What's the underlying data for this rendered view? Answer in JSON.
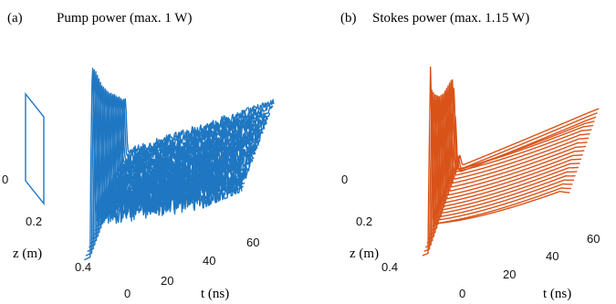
{
  "chart_data": [
    {
      "type": "line",
      "style": "waterfall-3d",
      "panel_label": "(a)",
      "title": "Pump power (max. 1 W)",
      "max_value": 1,
      "color": "#1f77c2",
      "xlabel": "t (ns)",
      "ylabel": "z (m)",
      "xticks": [
        "20",
        "40",
        "60"
      ],
      "yticks": [
        "0",
        "0.2",
        "0.4"
      ],
      "xticks_z0": [
        "0"
      ],
      "xlim": [
        0,
        75
      ],
      "ylim": [
        0,
        0.5
      ],
      "series": [
        {
          "z": 0.0,
          "peak": 0.38
        },
        {
          "z": 0.02,
          "peak": 0.4
        },
        {
          "z": 0.04,
          "peak": 0.42
        },
        {
          "z": 0.06,
          "peak": 0.45
        },
        {
          "z": 0.08,
          "peak": 0.48
        },
        {
          "z": 0.1,
          "peak": 0.5
        },
        {
          "z": 0.12,
          "peak": 0.53
        },
        {
          "z": 0.14,
          "peak": 0.56
        },
        {
          "z": 0.16,
          "peak": 0.58
        },
        {
          "z": 0.18,
          "peak": 0.61
        },
        {
          "z": 0.2,
          "peak": 0.63
        },
        {
          "z": 0.22,
          "peak": 0.66
        },
        {
          "z": 0.24,
          "peak": 0.69
        },
        {
          "z": 0.26,
          "peak": 0.72
        },
        {
          "z": 0.28,
          "peak": 0.75
        },
        {
          "z": 0.3,
          "peak": 0.78
        },
        {
          "z": 0.32,
          "peak": 0.82
        },
        {
          "z": 0.34,
          "peak": 0.86
        },
        {
          "z": 0.36,
          "peak": 0.9
        },
        {
          "z": 0.38,
          "peak": 0.94
        },
        {
          "z": 0.4,
          "peak": 0.97
        },
        {
          "z": 0.42,
          "peak": 1.0
        }
      ]
    },
    {
      "type": "line",
      "style": "waterfall-3d",
      "panel_label": "(b)",
      "title": "Stokes power (max. 1.15 W)",
      "max_value": 1.15,
      "color": "#d95319",
      "xlabel": "t (ns)",
      "ylabel": "z (m)",
      "xticks": [
        "20",
        "40",
        "60"
      ],
      "yticks": [
        "0",
        "0.2",
        "0.4"
      ],
      "xticks_z0": [
        "0"
      ],
      "xlim": [
        0,
        75
      ],
      "ylim": [
        0,
        0.5
      ],
      "series": [
        {
          "z": 0.0,
          "peak": 0.08
        },
        {
          "z": 0.02,
          "peak": 0.1
        },
        {
          "z": 0.04,
          "peak": 0.14
        },
        {
          "z": 0.06,
          "peak": 0.4
        },
        {
          "z": 0.08,
          "peak": 0.6
        },
        {
          "z": 0.1,
          "peak": 0.68
        },
        {
          "z": 0.12,
          "peak": 0.7
        },
        {
          "z": 0.14,
          "peak": 0.71
        },
        {
          "z": 0.16,
          "peak": 0.72
        },
        {
          "z": 0.18,
          "peak": 0.73
        },
        {
          "z": 0.2,
          "peak": 0.74
        },
        {
          "z": 0.22,
          "peak": 0.75
        },
        {
          "z": 0.24,
          "peak": 0.77
        },
        {
          "z": 0.26,
          "peak": 0.79
        },
        {
          "z": 0.28,
          "peak": 0.81
        },
        {
          "z": 0.3,
          "peak": 0.84
        },
        {
          "z": 0.32,
          "peak": 0.87
        },
        {
          "z": 0.34,
          "peak": 0.9
        },
        {
          "z": 0.36,
          "peak": 0.94
        },
        {
          "z": 0.38,
          "peak": 0.98
        },
        {
          "z": 0.4,
          "peak": 1.15
        }
      ]
    }
  ]
}
